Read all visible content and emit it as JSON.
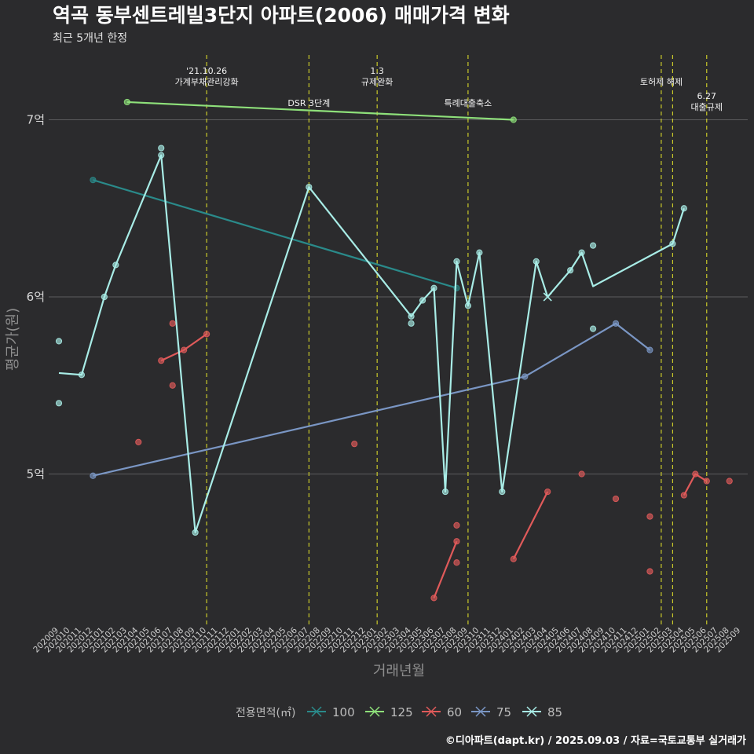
{
  "chart_data": {
    "type": "line",
    "title": "역곡 동부센트레빌3단지 아파트(2006) 매매가격 변화",
    "subtitle": "최근 5개년 한정",
    "xlabel": "거래년월",
    "ylabel": "평균가(원)",
    "caption": "©디아파트(dapt.kr) / 2025.09.03 / 자료=국토교통부 실거래가",
    "ylim": [
      4.2,
      7.3
    ],
    "yticks": [
      {
        "v": 5,
        "label": "5억"
      },
      {
        "v": 6,
        "label": "6억"
      },
      {
        "v": 7,
        "label": "7억"
      }
    ],
    "categories": [
      "202009",
      "202010",
      "202011",
      "202012",
      "202101",
      "202102",
      "202103",
      "202104",
      "202105",
      "202106",
      "202107",
      "202108",
      "202109",
      "202110",
      "202111",
      "202112",
      "202201",
      "202202",
      "202203",
      "202204",
      "202205",
      "202206",
      "202207",
      "202208",
      "202209",
      "202210",
      "202211",
      "202212",
      "202301",
      "202302",
      "202303",
      "202304",
      "202305",
      "202306",
      "202307",
      "202308",
      "202309",
      "202310",
      "202311",
      "202312",
      "202401",
      "202402",
      "202403",
      "202404",
      "202405",
      "202406",
      "202407",
      "202408",
      "202409",
      "202410",
      "202411",
      "202412",
      "202501",
      "202502",
      "202503",
      "202504",
      "202505",
      "202506",
      "202507",
      "202508",
      "202509"
    ],
    "legend_title": "전용면적(㎡)",
    "series": [
      {
        "name": "100",
        "color": "#2a8a8a",
        "line": [
          [
            "202012",
            6.66
          ],
          [
            "202308",
            6.05
          ]
        ],
        "points": [
          [
            "202012",
            6.66
          ],
          [
            "202308",
            6.05
          ]
        ]
      },
      {
        "name": "125",
        "color": "#8ee07a",
        "line": [
          [
            "202103",
            7.1
          ],
          [
            "202401",
            7.0
          ]
        ],
        "points": [
          [
            "202103",
            7.1
          ],
          [
            "202401",
            7.0
          ]
        ]
      },
      {
        "name": "60",
        "color": "#e05a5a",
        "segments": [
          [
            [
              "202106",
              5.64
            ],
            [
              "202108",
              5.7
            ],
            [
              "202110",
              5.79
            ]
          ],
          [
            [
              "202306",
              4.3
            ],
            [
              "202308",
              4.62
            ]
          ],
          [
            [
              "202401",
              4.52
            ],
            [
              "202404",
              4.9
            ]
          ],
          [
            [
              "202504",
              4.88
            ],
            [
              "202505",
              5.0
            ],
            [
              "202506",
              4.96
            ]
          ]
        ],
        "points": [
          [
            "202104",
            5.18
          ],
          [
            "202106",
            5.64
          ],
          [
            "202107",
            5.85
          ],
          [
            "202107",
            5.5
          ],
          [
            "202108",
            5.7
          ],
          [
            "202110",
            5.79
          ],
          [
            "202211",
            5.17
          ],
          [
            "202306",
            4.3
          ],
          [
            "202308",
            4.71
          ],
          [
            "202308",
            4.62
          ],
          [
            "202308",
            4.5
          ],
          [
            "202401",
            4.52
          ],
          [
            "202404",
            4.9
          ],
          [
            "202407",
            5.0
          ],
          [
            "202410",
            4.86
          ],
          [
            "202501",
            4.76
          ],
          [
            "202501",
            4.45
          ],
          [
            "202504",
            4.88
          ],
          [
            "202505",
            5.0
          ],
          [
            "202506",
            4.96
          ],
          [
            "202508",
            4.96
          ]
        ]
      },
      {
        "name": "75",
        "color": "#7a96c4",
        "line": [
          [
            "202012",
            4.99
          ],
          [
            "202402",
            5.55
          ],
          [
            "202410",
            5.85
          ],
          [
            "202501",
            5.7
          ]
        ],
        "points": [
          [
            "202012",
            4.99
          ],
          [
            "202402",
            5.55
          ],
          [
            "202410",
            5.85
          ],
          [
            "202501",
            5.7
          ]
        ]
      },
      {
        "name": "85",
        "color": "#a8ece6",
        "line": [
          [
            "202009",
            5.57
          ],
          [
            "202011",
            5.56
          ],
          [
            "202101",
            6.0
          ],
          [
            "202102",
            6.18
          ],
          [
            "202106",
            6.8
          ],
          [
            "202109",
            4.67
          ],
          [
            "202207",
            6.62
          ],
          [
            "202304",
            5.89
          ],
          [
            "202305",
            5.98
          ],
          [
            "202306",
            6.05
          ],
          [
            "202307",
            4.9
          ],
          [
            "202308",
            6.2
          ],
          [
            "202309",
            5.95
          ],
          [
            "202310",
            6.25
          ],
          [
            "202312",
            4.9
          ],
          [
            "202403",
            6.2
          ],
          [
            "202404",
            6.0
          ],
          [
            "202406",
            6.15
          ],
          [
            "202407",
            6.25
          ],
          [
            "202408",
            6.06
          ],
          [
            "202503",
            6.3
          ],
          [
            "202504",
            6.5
          ]
        ],
        "points": [
          [
            "202009",
            5.75
          ],
          [
            "202009",
            5.4
          ],
          [
            "202011",
            5.56
          ],
          [
            "202101",
            6.0
          ],
          [
            "202102",
            6.18
          ],
          [
            "202106",
            6.84
          ],
          [
            "202106",
            6.8
          ],
          [
            "202109",
            4.67
          ],
          [
            "202207",
            6.62
          ],
          [
            "202304",
            5.89
          ],
          [
            "202304",
            5.85
          ],
          [
            "202305",
            5.98
          ],
          [
            "202306",
            6.05
          ],
          [
            "202307",
            4.9
          ],
          [
            "202308",
            6.2
          ],
          [
            "202309",
            5.95
          ],
          [
            "202310",
            6.25
          ],
          [
            "202312",
            4.9
          ],
          [
            "202403",
            6.2
          ],
          [
            "202406",
            6.15
          ],
          [
            "202407",
            6.25
          ],
          [
            "202408",
            6.29
          ],
          [
            "202408",
            5.82
          ],
          [
            "202503",
            6.3
          ],
          [
            "202504",
            6.5
          ]
        ],
        "cross_points": [
          [
            "202404",
            6.0
          ]
        ]
      }
    ],
    "events": [
      {
        "x": "202110",
        "lines": [
          "'21.10.26",
          "가계부채관리강화"
        ],
        "tier": 0
      },
      {
        "x": "202207",
        "lines": [
          "DSR 3단계"
        ],
        "tier": 2
      },
      {
        "x": "202301",
        "lines": [
          "1.3",
          "규제완화"
        ],
        "tier": 0
      },
      {
        "x": "202309",
        "lines": [
          "특례대출축소"
        ],
        "tier": 2
      },
      {
        "x": "202502",
        "lines": [
          "토허제 해제"
        ],
        "tier": 1
      },
      {
        "x": "202503",
        "lines": [],
        "tier": 1
      },
      {
        "x": "202506",
        "lines": [
          "6.27",
          "대출규제"
        ],
        "tier": 3
      }
    ]
  }
}
